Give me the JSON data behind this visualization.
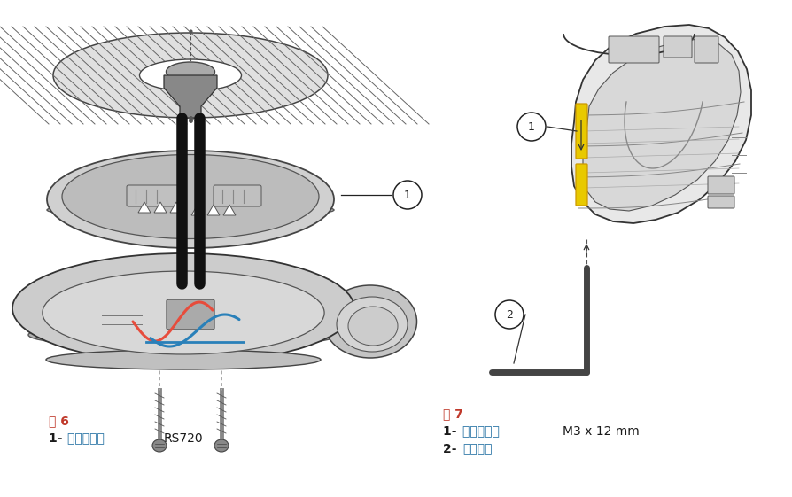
{
  "background_color": "#ffffff",
  "fig_width": 8.95,
  "fig_height": 5.61,
  "dpi": 100,
  "fig6_label": "图 6",
  "fig6_item1_prefix": "1- ",
  "fig6_item1_chinese": "底座密封坘 ",
  "fig6_item1_suffix": "RS720",
  "fig7_label": "图 7",
  "fig7_item1_prefix": "1- ",
  "fig7_item1_chinese": "内六角螺钉 ",
  "fig7_item1_suffix": "M3 x 12 mm",
  "fig7_item2_prefix": "2- ",
  "fig7_item2_chinese": "六角扬手",
  "red_color": "#c0392b",
  "blue_color": "#2471a3",
  "black_color": "#1a1a1a",
  "dark_gray": "#333333",
  "mid_gray": "#666666",
  "light_gray": "#aaaaaa",
  "lighter_gray": "#cccccc",
  "body_gray": "#d4d4d4",
  "body_dark": "#b0b0b0",
  "wire_red": "#e74c3c",
  "wire_blue": "#2980b9",
  "yellow": "#e8c900",
  "font_size_label": 10,
  "font_size_items": 10
}
